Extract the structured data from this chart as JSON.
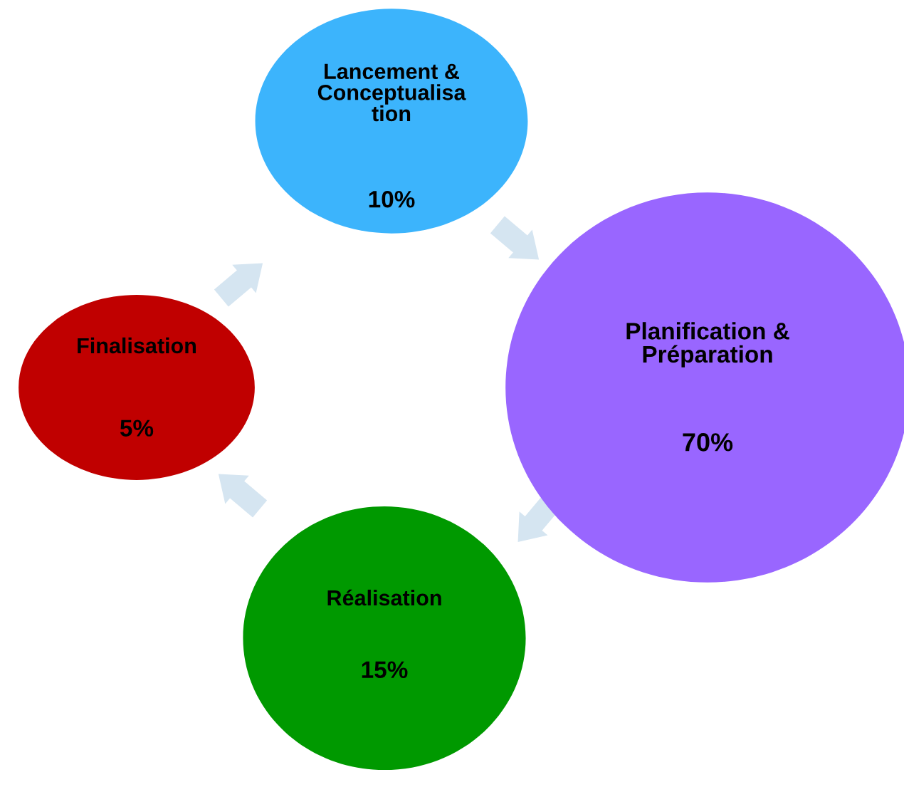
{
  "chart_data": {
    "type": "other",
    "categories": [
      "Lancement &\nConceptualisa\ntion",
      "Planification &\nPréparation",
      "Réalisation",
      "Finalisation"
    ],
    "values": [
      10,
      70,
      15,
      5
    ],
    "value_labels": [
      "10%",
      "70%",
      "15%",
      "5%"
    ],
    "colors": [
      "#3cb4fc",
      "#9966ff",
      "#009900",
      "#c00000"
    ]
  }
}
